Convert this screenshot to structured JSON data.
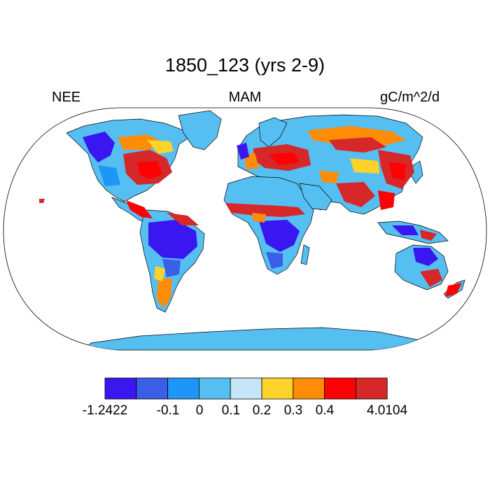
{
  "title": "1850_123 (yrs 2-9)",
  "left_label": "NEE",
  "center_label": "MAM",
  "right_label": "gC/m^2/d",
  "colorbar": {
    "colors": [
      "#3a17f0",
      "#3a5ee6",
      "#1e96f7",
      "#55bff2",
      "#c6e6f7",
      "#fdd22a",
      "#fd8c06",
      "#fc0204",
      "#d62828"
    ],
    "tick_labels": [
      "-1.2422",
      "-0.1",
      "0",
      "0.1",
      "0.2",
      "0.3",
      "0.4",
      "4.0104"
    ]
  },
  "colors": {
    "ocean": "#ffffff",
    "land_base": "#55bff2",
    "coast": "#000000"
  }
}
